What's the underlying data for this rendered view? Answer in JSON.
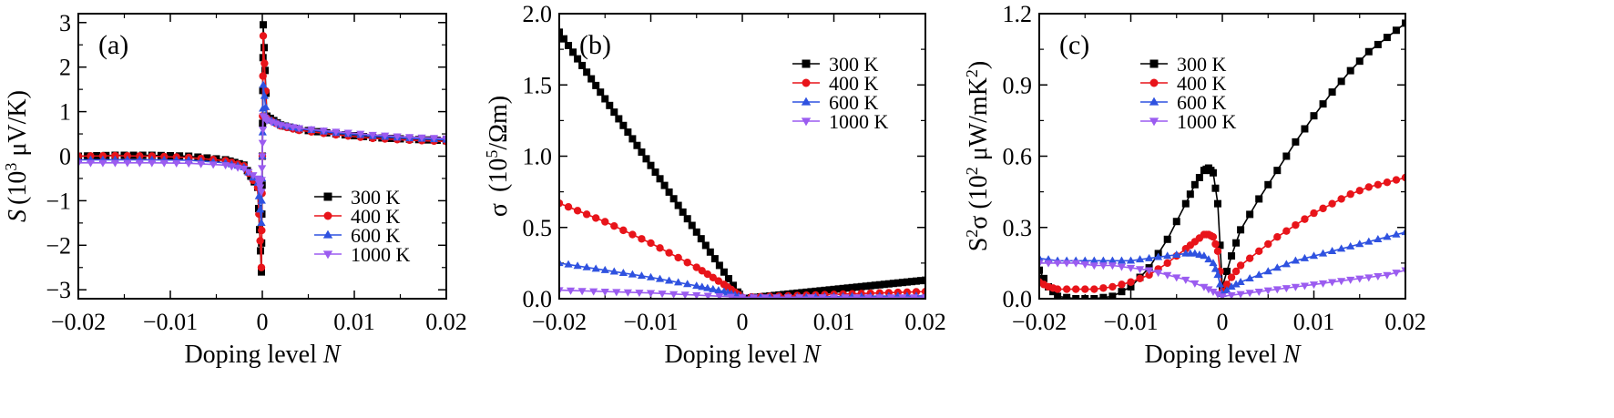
{
  "colors": {
    "300 K": "#000000",
    "400 K": "#e8141a",
    "600 K": "#2f52e0",
    "1000 K": "#9b5cf0"
  },
  "chart_data": [
    {
      "type": "line",
      "panel_label": "(a)",
      "xlabel": "Doping level",
      "xlabel_var": "N",
      "ylabel_var": "S",
      "ylabel_rest": "(10",
      "ylabel_sup": "3",
      "ylabel_unit": " μV/K)",
      "xlim": [
        -0.02,
        0.02
      ],
      "ylim": [
        -3.2,
        3.2
      ],
      "xticks": [
        -0.02,
        -0.01,
        0,
        0.01,
        0.02
      ],
      "xtick_labels": [
        "−0.02",
        "−0.01",
        "0",
        "0.01",
        "0.02"
      ],
      "yticks": [
        -3,
        -2,
        -1,
        0,
        1,
        2,
        3
      ],
      "ytick_labels": [
        "−3",
        "−2",
        "−1",
        "0",
        "1",
        "2",
        "3"
      ],
      "legend_placement": "bottom-right",
      "series": [
        {
          "name": "300 K",
          "marker": "square",
          "x": [
            -0.02,
            -0.016,
            -0.012,
            -0.008,
            -0.004,
            -0.002,
            -0.0005,
            -0.0001,
            0,
            0.0001,
            0.0005,
            0.002,
            0.004,
            0.008,
            0.012,
            0.016,
            0.02
          ],
          "y": [
            0.0,
            0.02,
            0.02,
            0.0,
            -0.08,
            -0.2,
            -0.7,
            -2.6,
            0,
            2.95,
            0.9,
            0.7,
            0.6,
            0.5,
            0.42,
            0.38,
            0.35
          ]
        },
        {
          "name": "400 K",
          "marker": "circle",
          "x": [
            -0.02,
            -0.016,
            -0.012,
            -0.008,
            -0.004,
            -0.002,
            -0.0005,
            -0.0001,
            0,
            0.0001,
            0.0005,
            0.002,
            0.004,
            0.008,
            0.012,
            0.016,
            0.02
          ],
          "y": [
            0.0,
            0.01,
            0.0,
            -0.03,
            -0.1,
            -0.22,
            -0.7,
            -2.5,
            0,
            2.7,
            0.85,
            0.68,
            0.58,
            0.48,
            0.4,
            0.36,
            0.33
          ]
        },
        {
          "name": "600 K",
          "marker": "triangle-up",
          "x": [
            -0.02,
            -0.016,
            -0.012,
            -0.008,
            -0.004,
            -0.002,
            -0.0005,
            -0.0001,
            0,
            0.0001,
            0.0005,
            0.002,
            0.004,
            0.008,
            0.012,
            0.016,
            0.02
          ],
          "y": [
            -0.08,
            -0.08,
            -0.08,
            -0.09,
            -0.15,
            -0.25,
            -0.6,
            -1.5,
            0,
            1.6,
            0.85,
            0.7,
            0.62,
            0.52,
            0.45,
            0.4,
            0.37
          ]
        },
        {
          "name": "1000 K",
          "marker": "triangle-down",
          "x": [
            -0.02,
            -0.016,
            -0.012,
            -0.008,
            -0.004,
            -0.002,
            -0.0005,
            -0.0001,
            0,
            0.0001,
            0.0005,
            0.002,
            0.004,
            0.008,
            0.012,
            0.016,
            0.02
          ],
          "y": [
            -0.15,
            -0.15,
            -0.15,
            -0.16,
            -0.2,
            -0.28,
            -0.5,
            -0.8,
            0,
            0.9,
            0.8,
            0.7,
            0.63,
            0.55,
            0.48,
            0.43,
            0.4
          ]
        }
      ]
    },
    {
      "type": "line",
      "panel_label": "(b)",
      "xlabel": "Doping level",
      "xlabel_var": "N",
      "ylabel_var": "σ",
      "ylabel_rest": " (10",
      "ylabel_sup": "5",
      "ylabel_unit": "/Ωm)",
      "xlim": [
        -0.02,
        0.02
      ],
      "ylim": [
        0,
        2.0
      ],
      "xticks": [
        -0.02,
        -0.01,
        0,
        0.01,
        0.02
      ],
      "xtick_labels": [
        "−0.02",
        "−0.01",
        "0",
        "0.01",
        "0.02"
      ],
      "yticks": [
        0,
        0.5,
        1.0,
        1.5,
        2.0
      ],
      "ytick_labels": [
        "0.0",
        "0.5",
        "1.0",
        "1.5",
        "2.0"
      ],
      "legend_placement": "top-right",
      "series": [
        {
          "name": "300 K",
          "marker": "square",
          "x": [
            -0.02,
            0,
            0.02
          ],
          "y": [
            1.87,
            0.0,
            0.13
          ]
        },
        {
          "name": "400 K",
          "marker": "circle",
          "x": [
            -0.02,
            -0.015,
            -0.01,
            -0.005,
            -0.002,
            0,
            0.005,
            0.01,
            0.015,
            0.02
          ],
          "y": [
            0.67,
            0.54,
            0.39,
            0.22,
            0.1,
            0.01,
            0.02,
            0.03,
            0.04,
            0.05
          ]
        },
        {
          "name": "600 K",
          "marker": "triangle-up",
          "x": [
            -0.02,
            -0.015,
            -0.01,
            -0.005,
            -0.002,
            0,
            0.005,
            0.01,
            0.015,
            0.02
          ],
          "y": [
            0.25,
            0.2,
            0.15,
            0.09,
            0.05,
            0.01,
            0.01,
            0.015,
            0.018,
            0.02
          ]
        },
        {
          "name": "1000 K",
          "marker": "triangle-down",
          "x": [
            -0.02,
            -0.01,
            0,
            0.01,
            0.02
          ],
          "y": [
            0.06,
            0.04,
            0.01,
            0.01,
            0.01
          ]
        }
      ]
    },
    {
      "type": "line",
      "panel_label": "(c)",
      "xlabel": "Doping level",
      "xlabel_var": "N",
      "ylabel_var": "S",
      "ylabel_pre_sup": "2",
      "ylabel_rest": "σ (10",
      "ylabel_sup": "2",
      "ylabel_unit": " μW/mK",
      "ylabel_sup2": "2",
      "ylabel_close": ")",
      "xlim": [
        -0.02,
        0.02
      ],
      "ylim": [
        0,
        1.2
      ],
      "xticks": [
        -0.02,
        -0.01,
        0,
        0.01,
        0.02
      ],
      "xtick_labels": [
        "−0.02",
        "−0.01",
        "0",
        "0.01",
        "0.02"
      ],
      "yticks": [
        0,
        0.3,
        0.6,
        0.9,
        1.2
      ],
      "ytick_labels": [
        "0.0",
        "0.3",
        "0.6",
        "0.9",
        "1.2"
      ],
      "legend_placement": "top-left",
      "series": [
        {
          "name": "300 K",
          "marker": "square",
          "x": [
            -0.02,
            -0.019,
            -0.018,
            -0.016,
            -0.014,
            -0.012,
            -0.01,
            -0.008,
            -0.006,
            -0.004,
            -0.003,
            -0.002,
            -0.0015,
            -0.001,
            -0.0005,
            0,
            0.001,
            0.002,
            0.004,
            0.006,
            0.008,
            0.01,
            0.012,
            0.014,
            0.016,
            0.018,
            0.02
          ],
          "y": [
            0.12,
            0.05,
            0.01,
            0.0,
            0.0,
            0.01,
            0.05,
            0.13,
            0.25,
            0.4,
            0.48,
            0.54,
            0.55,
            0.53,
            0.4,
            0.05,
            0.18,
            0.29,
            0.42,
            0.54,
            0.66,
            0.77,
            0.87,
            0.96,
            1.04,
            1.1,
            1.16
          ]
        },
        {
          "name": "400 K",
          "marker": "circle",
          "x": [
            -0.02,
            -0.019,
            -0.018,
            -0.016,
            -0.014,
            -0.012,
            -0.01,
            -0.008,
            -0.006,
            -0.004,
            -0.003,
            -0.002,
            -0.0015,
            -0.001,
            -0.0005,
            0,
            0.001,
            0.002,
            0.004,
            0.006,
            0.008,
            0.01,
            0.012,
            0.014,
            0.016,
            0.018,
            0.02
          ],
          "y": [
            0.07,
            0.05,
            0.04,
            0.04,
            0.04,
            0.05,
            0.07,
            0.1,
            0.15,
            0.21,
            0.24,
            0.27,
            0.27,
            0.26,
            0.2,
            0.03,
            0.09,
            0.14,
            0.2,
            0.26,
            0.31,
            0.36,
            0.4,
            0.44,
            0.47,
            0.49,
            0.51
          ]
        },
        {
          "name": "600 K",
          "marker": "triangle-up",
          "x": [
            -0.02,
            -0.018,
            -0.016,
            -0.014,
            -0.012,
            -0.01,
            -0.008,
            -0.006,
            -0.004,
            -0.003,
            -0.002,
            -0.001,
            -0.0005,
            0,
            0.001,
            0.002,
            0.004,
            0.006,
            0.008,
            0.01,
            0.012,
            0.014,
            0.016,
            0.018,
            0.02
          ],
          "y": [
            0.17,
            0.16,
            0.16,
            0.16,
            0.16,
            0.16,
            0.17,
            0.18,
            0.19,
            0.19,
            0.18,
            0.15,
            0.1,
            0.02,
            0.05,
            0.07,
            0.1,
            0.13,
            0.16,
            0.18,
            0.2,
            0.22,
            0.24,
            0.26,
            0.28
          ]
        },
        {
          "name": "1000 K",
          "marker": "triangle-down",
          "x": [
            -0.02,
            -0.018,
            -0.016,
            -0.014,
            -0.012,
            -0.01,
            -0.008,
            -0.006,
            -0.004,
            -0.002,
            -0.001,
            0,
            0.002,
            0.004,
            0.006,
            0.008,
            0.01,
            0.012,
            0.014,
            0.016,
            0.018,
            0.02
          ],
          "y": [
            0.15,
            0.15,
            0.15,
            0.14,
            0.14,
            0.13,
            0.12,
            0.1,
            0.08,
            0.05,
            0.03,
            0.01,
            0.02,
            0.03,
            0.04,
            0.05,
            0.06,
            0.07,
            0.08,
            0.09,
            0.1,
            0.12
          ]
        }
      ]
    }
  ]
}
